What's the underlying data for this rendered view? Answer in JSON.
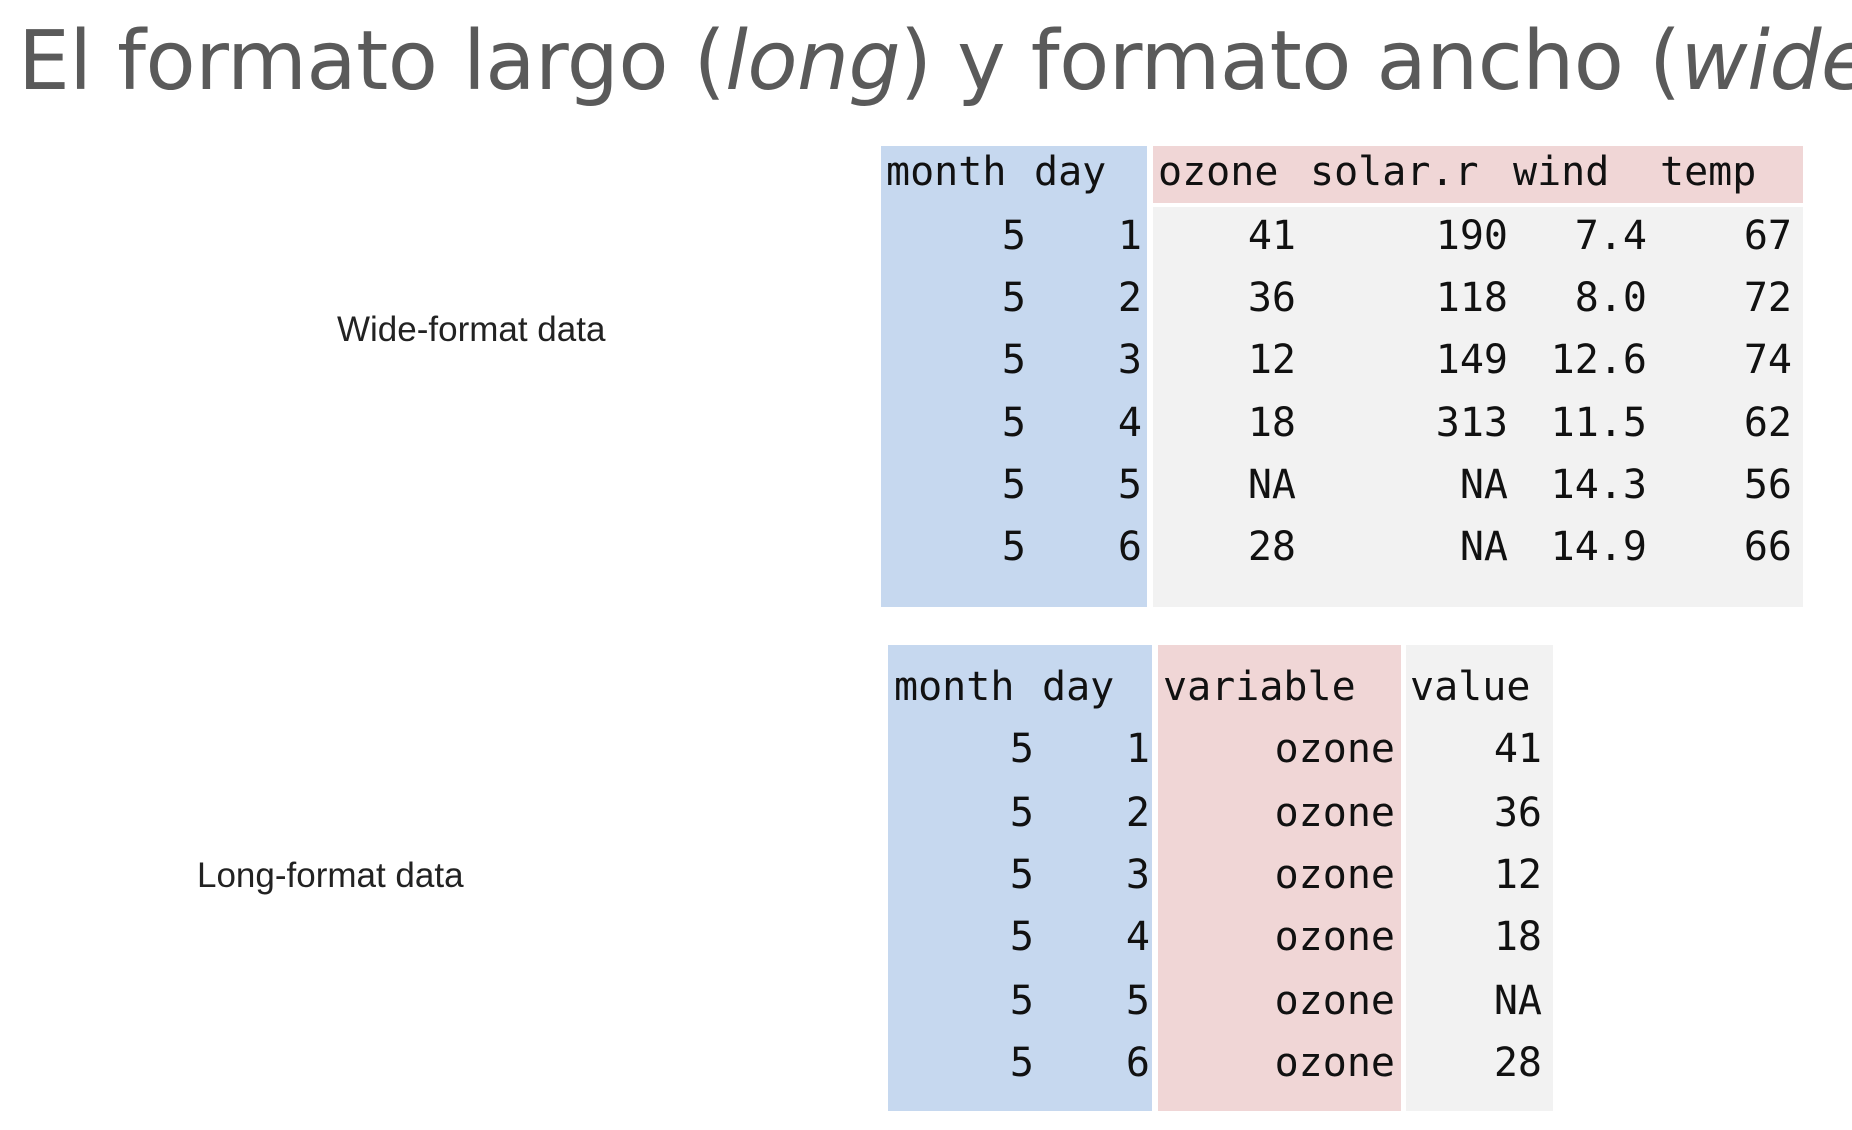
{
  "title": {
    "part1": "El formato largo (",
    "long_word": "long",
    "part2": ") y formato ancho (",
    "wide_word": "wide",
    "part3": ")"
  },
  "wide": {
    "label": "Wide-format data",
    "id_headers": [
      "month",
      "day"
    ],
    "var_headers": [
      "ozone",
      "solar.r",
      "wind",
      "temp"
    ],
    "rows": [
      [
        "5",
        "1",
        "41",
        "190",
        "7.4",
        "67"
      ],
      [
        "5",
        "2",
        "36",
        "118",
        "8.0",
        "72"
      ],
      [
        "5",
        "3",
        "12",
        "149",
        "12.6",
        "74"
      ],
      [
        "5",
        "4",
        "18",
        "313",
        "11.5",
        "62"
      ],
      [
        "5",
        "5",
        "NA",
        "NA",
        "14.3",
        "56"
      ],
      [
        "5",
        "6",
        "28",
        "NA",
        "14.9",
        "66"
      ]
    ]
  },
  "long": {
    "label": "Long-format data",
    "id_headers": [
      "month",
      "day"
    ],
    "variable_header": "variable",
    "value_header": "value",
    "rows": [
      [
        "5",
        "1",
        "ozone",
        "41"
      ],
      [
        "5",
        "2",
        "ozone",
        "36"
      ],
      [
        "5",
        "3",
        "ozone",
        "12"
      ],
      [
        "5",
        "4",
        "ozone",
        "18"
      ],
      [
        "5",
        "5",
        "ozone",
        "NA"
      ],
      [
        "5",
        "6",
        "ozone",
        "28"
      ]
    ]
  },
  "colors": {
    "id_band": "#c6d8ef",
    "variable_band": "#f0d6d6",
    "value_band": "#f2f2f2",
    "title_text": "#5a5a5a"
  }
}
